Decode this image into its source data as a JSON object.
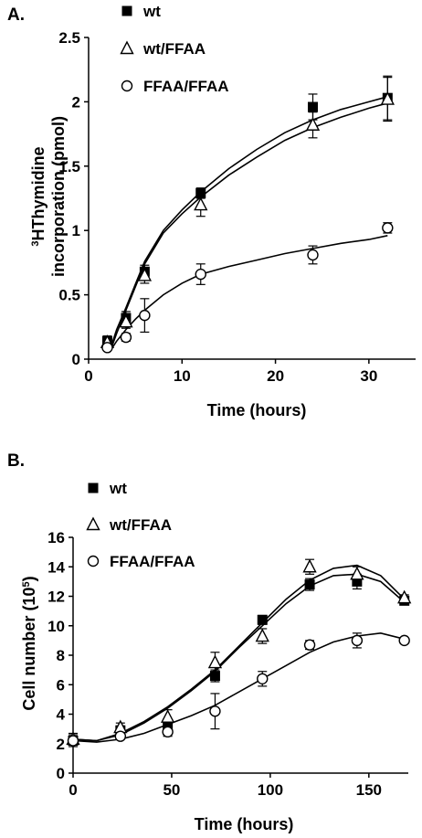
{
  "chart_data": [
    {
      "panel_label": "A.",
      "type": "line",
      "xlabel": "Time (hours)",
      "ylabel": "³HThymidine incorporation (pmol)",
      "ylabel_line1_sup": "3",
      "ylabel_line1": "HThymidine",
      "ylabel_line2": "incorporation (pmol)",
      "xlim": [
        0,
        35
      ],
      "ylim": [
        0,
        2.5
      ],
      "xticks": [
        0,
        10,
        20,
        30
      ],
      "yticks": [
        0,
        0.5,
        1,
        1.5,
        2,
        2.5
      ],
      "xtick_labels": [
        "0",
        "10",
        "20",
        "30"
      ],
      "ytick_labels": [
        "0",
        "0.5",
        "1",
        "1.5",
        "2",
        "2.5"
      ],
      "legend_position": "top-left",
      "series": [
        {
          "name": "wt",
          "marker": "square-filled",
          "x": [
            2,
            4,
            6,
            12,
            24,
            32
          ],
          "y": [
            0.14,
            0.32,
            0.68,
            1.29,
            1.96,
            2.03
          ],
          "err": [
            0.04,
            0.05,
            0.05,
            0.04,
            0.1,
            0.17
          ]
        },
        {
          "name": "wt/FFAA",
          "marker": "triangle-open",
          "x": [
            2,
            4,
            6,
            12,
            24,
            32
          ],
          "y": [
            0.13,
            0.29,
            0.65,
            1.2,
            1.82,
            2.02
          ],
          "err": [
            0.03,
            0.05,
            0.06,
            0.09,
            0.1,
            0.17
          ]
        },
        {
          "name": "FFAA/FFAA",
          "marker": "circle-open",
          "x": [
            2,
            4,
            6,
            12,
            24,
            32
          ],
          "y": [
            0.09,
            0.17,
            0.34,
            0.66,
            0.81,
            1.02
          ],
          "err": [
            0.02,
            0.03,
            0.13,
            0.08,
            0.07,
            0.04
          ]
        }
      ],
      "fit_curves": [
        {
          "x": [
            2.5,
            3,
            4,
            5,
            6,
            8,
            10,
            12,
            15,
            18,
            21,
            24,
            27,
            30,
            32
          ],
          "y": [
            0.12,
            0.23,
            0.4,
            0.58,
            0.76,
            1.0,
            1.16,
            1.3,
            1.48,
            1.63,
            1.76,
            1.86,
            1.94,
            2.0,
            2.04
          ]
        },
        {
          "x": [
            2.5,
            3,
            4,
            5,
            6,
            8,
            10,
            12,
            15,
            18,
            21,
            24,
            27,
            30,
            32
          ],
          "y": [
            0.1,
            0.2,
            0.38,
            0.56,
            0.74,
            0.98,
            1.13,
            1.26,
            1.43,
            1.57,
            1.7,
            1.8,
            1.88,
            1.95,
            1.99
          ]
        },
        {
          "x": [
            2.2,
            3,
            4,
            5,
            6,
            8,
            10,
            12,
            15,
            18,
            21,
            24,
            27,
            30,
            32
          ],
          "y": [
            0.05,
            0.14,
            0.23,
            0.31,
            0.38,
            0.5,
            0.59,
            0.66,
            0.72,
            0.77,
            0.82,
            0.86,
            0.9,
            0.93,
            0.96
          ]
        }
      ]
    },
    {
      "panel_label": "B.",
      "type": "line",
      "xlabel": "Time (hours)",
      "ylabel": "Cell number (10⁵)",
      "ylabel_main": "Cell number (10",
      "ylabel_sup": "5",
      "ylabel_tail": ")",
      "xlim": [
        0,
        170
      ],
      "ylim": [
        0,
        16
      ],
      "xticks": [
        0,
        50,
        100,
        150
      ],
      "yticks": [
        0,
        2,
        4,
        6,
        8,
        10,
        12,
        14,
        16
      ],
      "xtick_labels": [
        "0",
        "50",
        "100",
        "150"
      ],
      "ytick_labels": [
        "0",
        "2",
        "4",
        "6",
        "8",
        "10",
        "12",
        "14",
        "16"
      ],
      "legend_position": "top-left",
      "series": [
        {
          "name": "wt",
          "marker": "square-filled",
          "x": [
            0,
            24,
            48,
            72,
            96,
            120,
            144,
            168
          ],
          "y": [
            2.2,
            2.9,
            3.2,
            6.6,
            10.4,
            12.8,
            13.0,
            11.7
          ],
          "err": [
            0.4,
            0.3,
            0.3,
            0.4,
            0.3,
            0.4,
            0.5,
            0.2
          ]
        },
        {
          "name": "wt/FFAA",
          "marker": "triangle-open",
          "x": [
            0,
            24,
            48,
            72,
            96,
            120,
            144,
            168
          ],
          "y": [
            2.3,
            3.1,
            3.8,
            7.5,
            9.3,
            14.0,
            13.5,
            11.9
          ],
          "err": [
            0.4,
            0.3,
            0.5,
            0.7,
            0.5,
            0.5,
            0.5,
            0.2
          ]
        },
        {
          "name": "FFAA/FFAA",
          "marker": "circle-open",
          "x": [
            0,
            24,
            48,
            72,
            96,
            120,
            144,
            168
          ],
          "y": [
            2.2,
            2.5,
            2.8,
            4.2,
            6.4,
            8.7,
            9.0,
            9.0
          ],
          "err": [
            0.3,
            0.2,
            0.3,
            1.2,
            0.5,
            0.3,
            0.5,
            0.1
          ]
        }
      ],
      "fit_curves": [
        {
          "x": [
            0,
            12,
            24,
            36,
            48,
            60,
            72,
            84,
            96,
            108,
            120,
            132,
            144,
            156,
            168
          ],
          "y": [
            2.3,
            2.2,
            2.7,
            3.5,
            4.5,
            5.7,
            7.0,
            8.6,
            10.2,
            11.8,
            13.1,
            13.9,
            14.1,
            13.4,
            11.8
          ]
        },
        {
          "x": [
            0,
            12,
            24,
            36,
            48,
            60,
            72,
            84,
            96,
            108,
            120,
            132,
            144,
            156,
            168
          ],
          "y": [
            2.3,
            2.2,
            2.6,
            3.4,
            4.4,
            5.6,
            6.9,
            8.5,
            10.0,
            11.5,
            12.7,
            13.4,
            13.5,
            13.0,
            11.6
          ]
        },
        {
          "x": [
            0,
            12,
            24,
            36,
            48,
            60,
            72,
            84,
            96,
            108,
            120,
            132,
            144,
            156,
            168
          ],
          "y": [
            2.2,
            2.1,
            2.3,
            2.7,
            3.3,
            3.9,
            4.6,
            5.5,
            6.4,
            7.3,
            8.2,
            8.9,
            9.3,
            9.5,
            9.1
          ]
        }
      ]
    }
  ]
}
